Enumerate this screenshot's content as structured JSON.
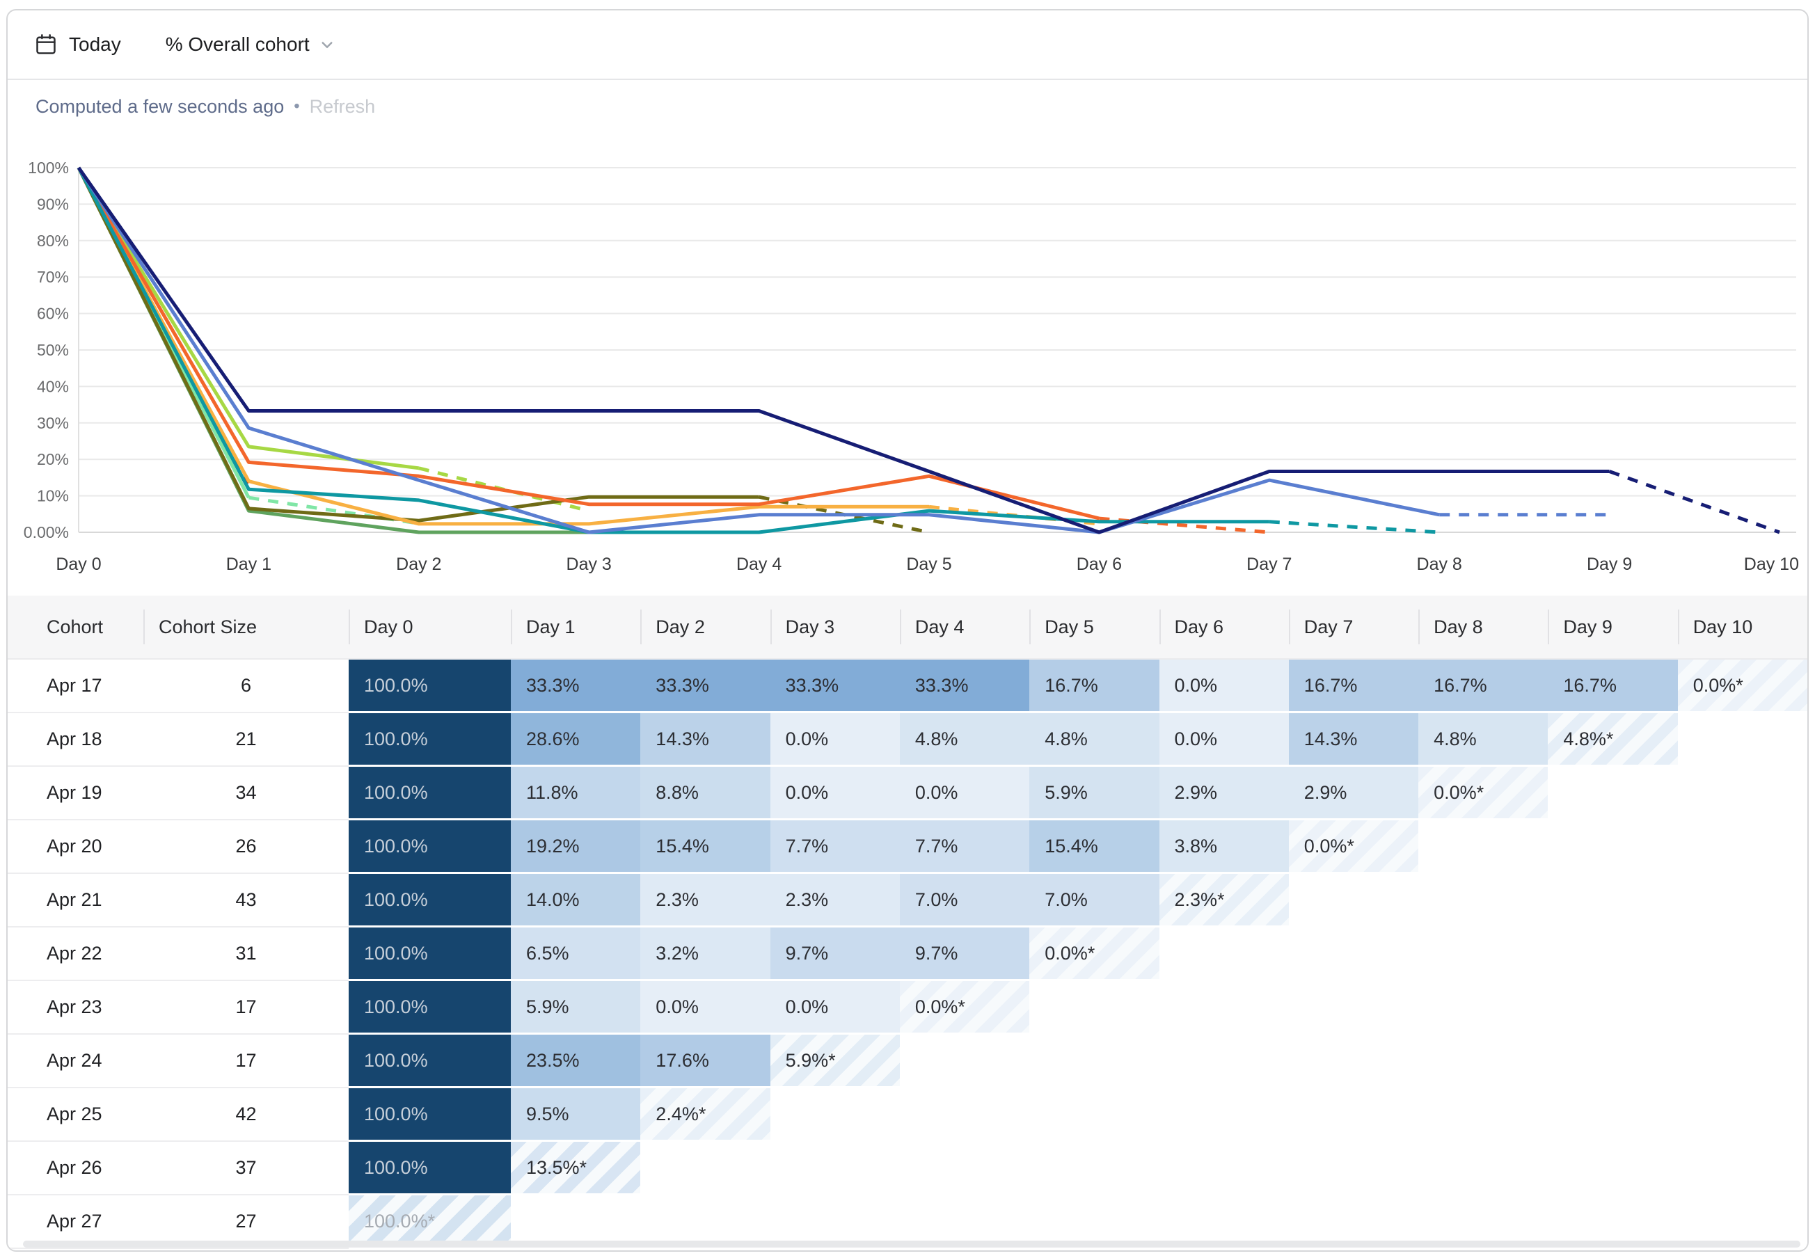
{
  "toolbar": {
    "date_label": "Today",
    "metric_label": "% Overall cohort"
  },
  "status": {
    "computed": "Computed a few seconds ago",
    "separator": "•",
    "refresh": "Refresh"
  },
  "chart_data": {
    "type": "line",
    "x_labels": [
      "Day 0",
      "Day 1",
      "Day 2",
      "Day 3",
      "Day 4",
      "Day 5",
      "Day 6",
      "Day 7",
      "Day 8",
      "Day 9",
      "Day 10"
    ],
    "y_tick_labels": [
      "100%",
      "90%",
      "80%",
      "70%",
      "60%",
      "50%",
      "40%",
      "30%",
      "20%",
      "10%",
      "0.00%"
    ],
    "ylim": [
      0,
      100
    ],
    "grid": true,
    "legend": "none",
    "note": "last segment of each series is dashed (incomplete period)",
    "series": [
      {
        "name": "Apr 17",
        "cohort_size": 6,
        "color": "#161d74",
        "dashed_last": true,
        "values": [
          100,
          33.3,
          33.3,
          33.3,
          33.3,
          16.7,
          0,
          16.7,
          16.7,
          16.7,
          0
        ]
      },
      {
        "name": "Apr 18",
        "cohort_size": 21,
        "color": "#5a7ed0",
        "dashed_last": true,
        "values": [
          100,
          28.6,
          14.3,
          0,
          4.8,
          4.8,
          0,
          14.3,
          4.8,
          4.8
        ]
      },
      {
        "name": "Apr 19",
        "cohort_size": 34,
        "color": "#0e98a2",
        "dashed_last": true,
        "values": [
          100,
          11.8,
          8.8,
          0,
          0,
          5.9,
          2.9,
          2.9,
          0
        ]
      },
      {
        "name": "Apr 20",
        "cohort_size": 26,
        "color": "#f3662b",
        "dashed_last": true,
        "values": [
          100,
          19.2,
          15.4,
          7.7,
          7.7,
          15.4,
          3.8,
          0
        ]
      },
      {
        "name": "Apr 21",
        "cohort_size": 43,
        "color": "#f8b042",
        "dashed_last": true,
        "values": [
          100,
          14.0,
          2.3,
          2.3,
          7.0,
          7.0,
          2.3
        ]
      },
      {
        "name": "Apr 22",
        "cohort_size": 31,
        "color": "#6f6b16",
        "dashed_last": true,
        "values": [
          100,
          6.5,
          3.2,
          9.7,
          9.7,
          0
        ]
      },
      {
        "name": "Apr 23",
        "cohort_size": 17,
        "color": "#5fa35e",
        "dashed_last": true,
        "values": [
          100,
          5.9,
          0,
          0,
          0
        ]
      },
      {
        "name": "Apr 24",
        "cohort_size": 17,
        "color": "#a7d844",
        "dashed_last": true,
        "values": [
          100,
          23.5,
          17.6,
          5.9
        ]
      },
      {
        "name": "Apr 25",
        "cohort_size": 42,
        "color": "#80e6a6",
        "dashed_last": true,
        "values": [
          100,
          9.5,
          2.4
        ]
      },
      {
        "name": "Apr 26",
        "cohort_size": 37,
        "color": "#a4362e",
        "dashed_last": true,
        "values": [
          100,
          13.5
        ]
      },
      {
        "name": "Apr 27",
        "cohort_size": 27,
        "color": null,
        "dashed_last": true,
        "values": [
          100
        ]
      }
    ]
  },
  "table": {
    "columns": [
      "Cohort",
      "Cohort Size",
      "Day 0",
      "Day 1",
      "Day 2",
      "Day 3",
      "Day 4",
      "Day 5",
      "Day 6",
      "Day 7",
      "Day 8",
      "Day 9",
      "Day 10"
    ],
    "rows": [
      {
        "cohort": "Apr 17",
        "size": "6",
        "cells": [
          "100.0%",
          "33.3%",
          "33.3%",
          "33.3%",
          "33.3%",
          "16.7%",
          "0.0%",
          "16.7%",
          "16.7%",
          "16.7%",
          "0.0%*"
        ]
      },
      {
        "cohort": "Apr 18",
        "size": "21",
        "cells": [
          "100.0%",
          "28.6%",
          "14.3%",
          "0.0%",
          "4.8%",
          "4.8%",
          "0.0%",
          "14.3%",
          "4.8%",
          "4.8%*"
        ]
      },
      {
        "cohort": "Apr 19",
        "size": "34",
        "cells": [
          "100.0%",
          "11.8%",
          "8.8%",
          "0.0%",
          "0.0%",
          "5.9%",
          "2.9%",
          "2.9%",
          "0.0%*"
        ]
      },
      {
        "cohort": "Apr 20",
        "size": "26",
        "cells": [
          "100.0%",
          "19.2%",
          "15.4%",
          "7.7%",
          "7.7%",
          "15.4%",
          "3.8%",
          "0.0%*"
        ]
      },
      {
        "cohort": "Apr 21",
        "size": "43",
        "cells": [
          "100.0%",
          "14.0%",
          "2.3%",
          "2.3%",
          "7.0%",
          "7.0%",
          "2.3%*"
        ]
      },
      {
        "cohort": "Apr 22",
        "size": "31",
        "cells": [
          "100.0%",
          "6.5%",
          "3.2%",
          "9.7%",
          "9.7%",
          "0.0%*"
        ]
      },
      {
        "cohort": "Apr 23",
        "size": "17",
        "cells": [
          "100.0%",
          "5.9%",
          "0.0%",
          "0.0%",
          "0.0%*"
        ]
      },
      {
        "cohort": "Apr 24",
        "size": "17",
        "cells": [
          "100.0%",
          "23.5%",
          "17.6%",
          "5.9%*"
        ]
      },
      {
        "cohort": "Apr 25",
        "size": "42",
        "cells": [
          "100.0%",
          "9.5%",
          "2.4%*"
        ]
      },
      {
        "cohort": "Apr 26",
        "size": "37",
        "cells": [
          "100.0%",
          "13.5%*"
        ]
      },
      {
        "cohort": "Apr 27",
        "size": "27",
        "cells": [
          "100.0%*"
        ]
      }
    ]
  },
  "colors": {
    "cell_scale_base": "#3d7fc1",
    "cell_full": "#16456e",
    "cell_full_text": "#c6cfd9",
    "cell_text": "#2c2e33",
    "incomplete_full_text": "#a6abb2",
    "stripe_light": "#f7fafc",
    "gridline": "#e9e9e9",
    "axis_label": "#6b6c6e",
    "x_label": "#3a3b3d"
  }
}
